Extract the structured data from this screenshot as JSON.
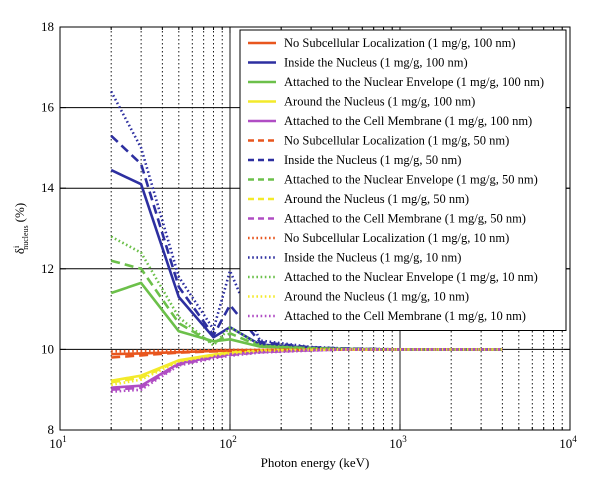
{
  "chart_data": {
    "type": "line",
    "xscale": "log",
    "xlim": [
      10,
      10000
    ],
    "ylim": [
      8,
      18
    ],
    "yticks": [
      8,
      10,
      12,
      14,
      16,
      18
    ],
    "xtick_labels": [
      {
        "base": "10",
        "exp": "1"
      },
      {
        "base": "10",
        "exp": "2"
      },
      {
        "base": "10",
        "exp": "3"
      },
      {
        "base": "10",
        "exp": "4"
      }
    ],
    "xlabel": "Photon energy (keV)",
    "ylabel": {
      "main": "δ",
      "sup": "i",
      "sub": "nucleus",
      "unit": "(%)"
    },
    "grid": true,
    "legend_position": "top-right",
    "x": [
      20,
      30,
      50,
      80,
      100,
      150,
      300,
      500,
      1000,
      2000,
      4000
    ],
    "series": [
      {
        "name": "No Subcellular Localization (1 mg/g, 100 nm)",
        "color": "#e8561e",
        "style": "solid",
        "values": [
          9.88,
          9.9,
          9.93,
          9.96,
          9.97,
          9.98,
          9.99,
          10.0,
          10.0,
          10.0,
          10.0
        ]
      },
      {
        "name": "Inside the Nucleus (1 mg/g, 100 nm)",
        "color": "#2d2fa0",
        "style": "solid",
        "values": [
          14.45,
          14.1,
          11.3,
          10.3,
          10.55,
          10.12,
          10.04,
          10.01,
          10.0,
          10.0,
          10.0
        ]
      },
      {
        "name": "Attached to the Nuclear Envelope (1 mg/g, 100 nm)",
        "color": "#6cc04a",
        "style": "solid",
        "values": [
          11.4,
          11.65,
          10.45,
          10.2,
          10.25,
          10.07,
          10.03,
          10.01,
          10.0,
          10.0,
          10.0
        ]
      },
      {
        "name": "Around the Nucleus (1 mg/g, 100 nm)",
        "color": "#f3ea2a",
        "style": "solid",
        "values": [
          9.22,
          9.35,
          9.73,
          9.87,
          9.93,
          9.97,
          9.99,
          10.0,
          10.0,
          10.0,
          10.0
        ]
      },
      {
        "name": "Attached to the Cell Membrane (1 mg/g, 100 nm)",
        "color": "#b04dc4",
        "style": "solid",
        "values": [
          9.05,
          9.1,
          9.65,
          9.82,
          9.88,
          9.94,
          9.98,
          10.0,
          10.0,
          10.0,
          10.0
        ]
      },
      {
        "name": "No Subcellular Localization (1 mg/g, 50 nm)",
        "color": "#e8561e",
        "style": "dashed",
        "values": [
          9.8,
          9.85,
          9.92,
          9.95,
          9.96,
          9.98,
          9.99,
          10.0,
          10.0,
          10.0,
          10.0
        ]
      },
      {
        "name": "Inside the Nucleus (1 mg/g, 50 nm)",
        "color": "#2d2fa0",
        "style": "dashed",
        "values": [
          15.3,
          14.6,
          11.55,
          10.35,
          11.1,
          10.18,
          10.05,
          10.02,
          10.0,
          10.0,
          10.0
        ]
      },
      {
        "name": "Attached to the Nuclear Envelope (1 mg/g, 50 nm)",
        "color": "#6cc04a",
        "style": "dashed",
        "values": [
          12.2,
          12.0,
          10.65,
          10.15,
          10.4,
          10.08,
          10.03,
          10.01,
          10.0,
          10.0,
          10.0
        ]
      },
      {
        "name": "Around the Nucleus (1 mg/g, 50 nm)",
        "color": "#f3ea2a",
        "style": "dashed",
        "values": [
          9.18,
          9.3,
          9.72,
          9.86,
          9.92,
          9.97,
          9.99,
          10.0,
          10.0,
          10.0,
          10.0
        ]
      },
      {
        "name": "Attached to the Cell Membrane (1 mg/g, 50 nm)",
        "color": "#b04dc4",
        "style": "dashed",
        "values": [
          9.0,
          9.05,
          9.62,
          9.8,
          9.86,
          9.93,
          9.98,
          10.0,
          10.0,
          10.0,
          10.0
        ]
      },
      {
        "name": "No Subcellular Localization (1 mg/g, 10 nm)",
        "color": "#e8561e",
        "style": "dotted",
        "values": [
          9.95,
          9.96,
          9.97,
          9.98,
          9.99,
          9.99,
          10.0,
          10.0,
          10.0,
          10.0,
          10.0
        ]
      },
      {
        "name": "Inside the Nucleus (1 mg/g, 10 nm)",
        "color": "#2d2fa0",
        "style": "dotted",
        "values": [
          16.4,
          15.0,
          11.8,
          10.5,
          11.95,
          10.22,
          10.06,
          10.02,
          10.0,
          10.0,
          10.0
        ]
      },
      {
        "name": "Attached to the Nuclear Envelope (1 mg/g, 10 nm)",
        "color": "#6cc04a",
        "style": "dotted",
        "values": [
          12.8,
          12.4,
          10.8,
          10.1,
          10.55,
          10.1,
          10.03,
          10.01,
          10.0,
          10.0,
          10.0
        ]
      },
      {
        "name": "Around the Nucleus (1 mg/g, 10 nm)",
        "color": "#f3ea2a",
        "style": "dotted",
        "values": [
          9.12,
          9.25,
          9.7,
          9.85,
          9.9,
          9.96,
          9.99,
          10.0,
          10.0,
          10.0,
          10.0
        ]
      },
      {
        "name": "Attached to the Cell Membrane (1 mg/g, 10 nm)",
        "color": "#b04dc4",
        "style": "dotted",
        "values": [
          8.95,
          9.0,
          9.6,
          9.78,
          9.84,
          9.92,
          9.97,
          10.0,
          10.0,
          10.0,
          10.0
        ]
      }
    ]
  }
}
